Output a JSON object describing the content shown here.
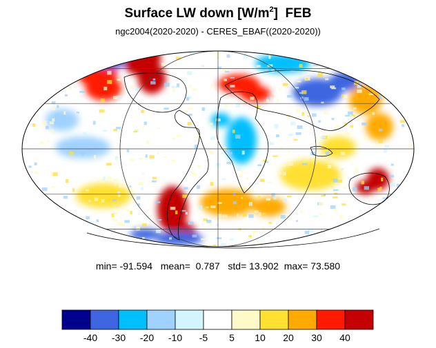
{
  "title_text": "Surface LW down [W/m",
  "title_sup": "2",
  "title_close": "]",
  "title_month": "FEB",
  "subtitle": "ngc2004(2020-2020) - CERES_EBAF((2020-2020))",
  "stats": {
    "min_label": "min=",
    "min": "-91.594",
    "mean_label": "mean=",
    "mean": "0.787",
    "std_label": "std=",
    "std": "13.902",
    "max_label": "max=",
    "max": "73.580"
  },
  "colorbar": {
    "colors": [
      "#00008f",
      "#3d66e0",
      "#00bfff",
      "#a0d2ff",
      "#d2f5ff",
      "#ffffff",
      "#fffac8",
      "#ffe033",
      "#ffaa00",
      "#ff1a00",
      "#c40000"
    ],
    "labels": [
      "-40",
      "-30",
      "-20",
      "-10",
      "-5",
      "5",
      "10",
      "20",
      "30",
      "40"
    ]
  },
  "map": {
    "projection": "mollweide",
    "anomalies": [
      {
        "region": "north-atlantic-greenland",
        "category": 10
      },
      {
        "region": "north-pacific-alaska",
        "category": 9
      },
      {
        "region": "north-canada",
        "category": 1
      },
      {
        "region": "europe-north-africa",
        "category": 9
      },
      {
        "region": "central-asia",
        "category": 1
      },
      {
        "region": "siberia-east",
        "category": 2
      },
      {
        "region": "east-asia",
        "category": 8
      },
      {
        "region": "central-africa",
        "category": 2
      },
      {
        "region": "south-atlantic",
        "category": 8
      },
      {
        "region": "southern-south-america",
        "category": 10
      },
      {
        "region": "australia-southeast",
        "category": 10
      },
      {
        "region": "southern-ocean-south-america",
        "category": 1
      },
      {
        "region": "tropical-pacific-east",
        "category": 3
      },
      {
        "region": "indian-ocean",
        "category": 7
      }
    ]
  }
}
